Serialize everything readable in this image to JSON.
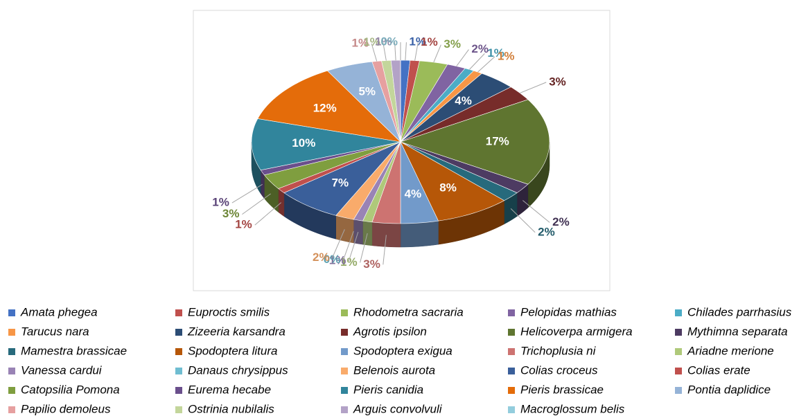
{
  "chart_data": {
    "type": "pie",
    "categories": [
      "Amata phegea",
      "Euproctis smilis",
      "Rhodometra sacraria",
      "Pelopidas mathias",
      "Chilades parrhasius",
      "Tarucus nara",
      "Zizeeria karsandra",
      "Agrotis ipsilon",
      "Helicoverpa armigera",
      "Mythimna separata",
      "Mamestra brassicae",
      "Spodoptera litura",
      "Spodoptera exigua",
      "Trichoplusia ni",
      "Ariadne merione",
      "Vanessa cardui",
      "Danaus chrysippus",
      "Belenois aurota",
      "Colias croceus",
      "Colias erate",
      "Catopsilia Pomona",
      "Eurema hecabe",
      "Pieris canidia",
      "Pieris brassicae",
      "Pontia daplidice",
      "Papilio demoleus",
      "Ostrinia nubilalis",
      "Arguis convolvuli",
      "Macroglossum belis"
    ],
    "values": [
      1,
      1,
      3,
      2,
      1,
      1,
      4,
      3,
      17,
      2,
      2,
      8,
      4,
      3,
      1,
      1,
      0,
      2,
      7,
      1,
      3,
      1,
      10,
      12,
      5,
      1,
      1,
      1,
      0
    ],
    "value_labels": [
      "1%",
      "1%",
      "3%",
      "2%",
      "1%",
      "1%",
      "4%",
      "3%",
      "17%",
      "2%",
      "2%",
      "8%",
      "4%",
      "3%",
      "1%",
      "1%",
      "0%",
      "2%",
      "7%",
      "1%",
      "3%",
      "1%",
      "10%",
      "12%",
      "5%",
      "1%",
      "1%",
      "1%",
      "0%"
    ],
    "colors": [
      "#4472c4",
      "#c0504d",
      "#9bbb59",
      "#8064a2",
      "#4bacc6",
      "#f79646",
      "#2c4d75",
      "#772c2a",
      "#5f7530",
      "#4d3b62",
      "#276a7c",
      "#b65708",
      "#729aca",
      "#cd7371",
      "#afc97a",
      "#9983b5",
      "#6fbdd1",
      "#f9ab6b",
      "#3a5f9a",
      "#c0504d",
      "#7f9e3f",
      "#6a4f8c",
      "#31859c",
      "#e46c0a",
      "#95b3d7",
      "#e6a0a0",
      "#c3d69b",
      "#b3a2c7",
      "#93cddd"
    ],
    "legend": "bottom"
  }
}
